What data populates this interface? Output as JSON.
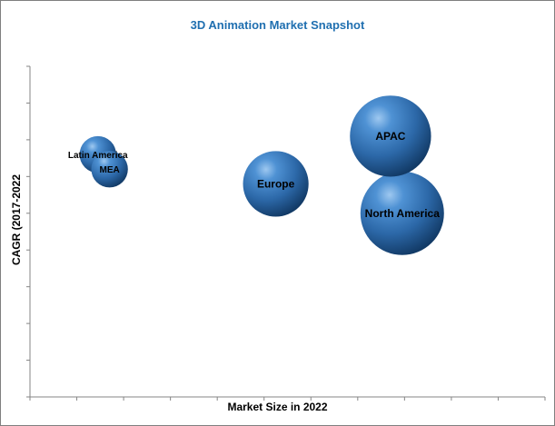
{
  "chart_data": {
    "type": "bubble",
    "title": "3D Animation Market Snapshot",
    "xlabel": "Market Size in 2022",
    "ylabel": "CAGR (2017-2022",
    "xlim": [
      0,
      11
    ],
    "ylim": [
      0,
      9
    ],
    "grid": false,
    "legend": "none",
    "bubble_color": "#2f6faf",
    "series": [
      {
        "name": "Latin America",
        "x": 1.45,
        "y": 6.6,
        "size": 1.0
      },
      {
        "name": "MEA",
        "x": 1.7,
        "y": 6.2,
        "size": 1.0
      },
      {
        "name": "Europe",
        "x": 5.25,
        "y": 5.8,
        "size": 3.2
      },
      {
        "name": "APAC",
        "x": 7.7,
        "y": 7.1,
        "size": 4.9
      },
      {
        "name": "North America",
        "x": 7.95,
        "y": 5.0,
        "size": 5.2
      }
    ]
  }
}
